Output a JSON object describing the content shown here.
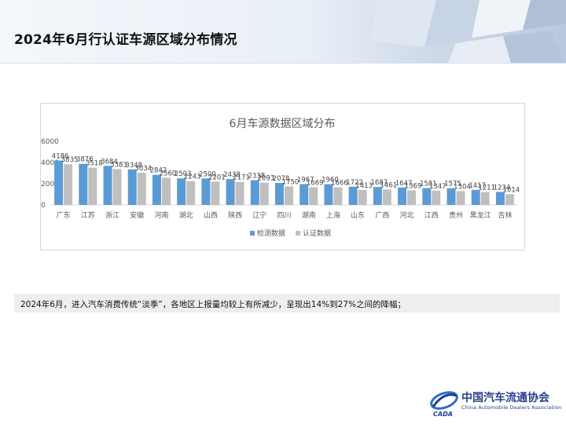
{
  "header": {
    "title": "2024年6月行认证车源区域分布情况"
  },
  "chart_data": {
    "type": "bar",
    "title": "6月车源数据区域分布",
    "categories": [
      "广东",
      "江苏",
      "浙江",
      "安徽",
      "河南",
      "湖北",
      "山西",
      "陕西",
      "辽宁",
      "四川",
      "湖南",
      "上海",
      "山东",
      "广西",
      "河北",
      "江西",
      "贵州",
      "黑龙江",
      "吉林"
    ],
    "series": [
      {
        "name": "检测数据",
        "values": [
          4186,
          3876,
          3684,
          3348,
          2842,
          2503,
          2500,
          2438,
          2338,
          2078,
          1967,
          1960,
          1722,
          1687,
          1647,
          1581,
          1575,
          1417,
          1234
        ]
      },
      {
        "name": "认证数据",
        "values": [
          3835,
          3518,
          3383,
          3034,
          2560,
          2243,
          2201,
          2171,
          2093,
          1750,
          1669,
          1666,
          1413,
          1461,
          1369,
          1347,
          1304,
          1211,
          1014
        ]
      }
    ],
    "ylim": [
      0,
      6000
    ],
    "yticks": [
      "6000",
      "4000",
      "2000",
      "0"
    ],
    "legend": "bottom",
    "grid": false,
    "colors": {
      "检测数据": "#5b9bd5",
      "认证数据": "#bfbfbf"
    }
  },
  "note": {
    "text": "2024年6月，进入汽车消费传统“淡季”，各地区上报量均较上有所减少，呈现出14%到27%之间的降幅；"
  },
  "logo": {
    "main": "中国汽车流通协会",
    "sub": "China Automobile Dealers Association",
    "mark": "CADA"
  }
}
